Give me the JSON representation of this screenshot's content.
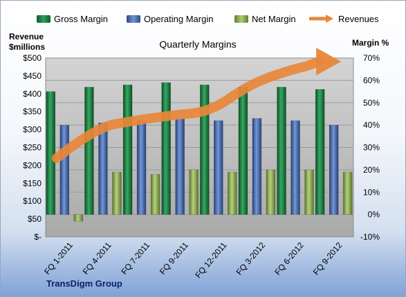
{
  "chart_data": {
    "type": "bar",
    "title": "Quarterly Margins",
    "footer": "TransDigm Group",
    "ylabel_left": [
      "Revenue",
      "$millions"
    ],
    "ylabel_right": "Margin %",
    "categories": [
      "FQ 1-2011",
      "FQ 4-2011",
      "FQ 7-2011",
      "FQ 9-2011",
      "FQ 12-2011",
      "FQ 3-2012",
      "FQ 6-2012",
      "FQ 9-2012"
    ],
    "left_axis": {
      "ylim": [
        0,
        500
      ],
      "ticks": [
        "$-",
        "$50",
        "$100",
        "$150",
        "$200",
        "$250",
        "$300",
        "$350",
        "$400",
        "$450",
        "$500"
      ]
    },
    "right_axis": {
      "ylim": [
        -10,
        70
      ],
      "ticks": [
        "-10%",
        "0%",
        "10%",
        "20%",
        "30%",
        "40%",
        "50%",
        "60%",
        "70%"
      ]
    },
    "series": [
      {
        "name": "Gross Margin",
        "type": "bar",
        "axis": "right",
        "color": "#1f7a3e",
        "values": [
          55,
          57,
          58,
          59,
          58,
          57,
          57,
          56
        ]
      },
      {
        "name": "Operating Margin",
        "type": "bar",
        "axis": "right",
        "color": "#4a6fb0",
        "values": [
          40,
          41,
          42,
          43,
          42,
          43,
          42,
          40
        ]
      },
      {
        "name": "Net Margin",
        "type": "bar",
        "axis": "right",
        "color": "#8fae4f",
        "values": [
          -3,
          19,
          18,
          20,
          19,
          20,
          20,
          19
        ]
      },
      {
        "name": "Revenues",
        "type": "line",
        "axis": "left",
        "color": "#e8873a",
        "values": [
          220,
          305,
          325,
          340,
          350,
          425,
          465,
          490
        ]
      }
    ],
    "grid": true,
    "legend_position": "top"
  }
}
